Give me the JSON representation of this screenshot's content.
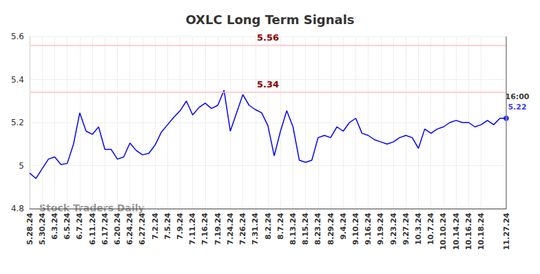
{
  "chart_data": {
    "type": "line",
    "title": "OXLC Long Term Signals",
    "watermark": "Stock Traders Daily",
    "categories": [
      "5.28.24",
      null,
      "5.30.24",
      null,
      "6.3.24",
      null,
      "6.5.24",
      null,
      "6.7.24",
      null,
      "6.11.24",
      null,
      "6.17.24",
      null,
      "6.20.24",
      null,
      "6.24.24",
      null,
      "6.27.24",
      null,
      "7.2.24",
      null,
      "7.5.24",
      null,
      "7.9.24",
      null,
      "7.11.24",
      null,
      "7.16.24",
      null,
      "7.19.24",
      null,
      "7.24.24",
      null,
      "7.26.24",
      null,
      "7.31.24",
      null,
      "8.2.24",
      null,
      "8.7.24",
      null,
      "8.13.24",
      null,
      "8.15.24",
      null,
      "8.23.24",
      null,
      "8.29.24",
      null,
      "9.4.24",
      null,
      "9.10.24",
      null,
      "9.16.24",
      null,
      "9.19.24",
      null,
      "9.23.24",
      null,
      "9.27.24",
      null,
      "10.3.24",
      null,
      "10.7.24",
      null,
      "10.10.24",
      null,
      "10.14.24",
      null,
      "10.16.24",
      null,
      "10.18.24",
      null,
      null,
      null,
      "11.27.24"
    ],
    "series": [
      {
        "name": "OXLC",
        "color": "#0000ff",
        "values": [
          4.965,
          4.94,
          4.985,
          5.03,
          5.04,
          5.005,
          5.01,
          5.1,
          5.245,
          5.16,
          5.145,
          5.18,
          5.075,
          5.075,
          5.03,
          5.04,
          5.105,
          5.07,
          5.05,
          5.057,
          5.095,
          5.155,
          5.19,
          5.225,
          5.255,
          5.3,
          5.235,
          5.27,
          5.29,
          5.265,
          5.28,
          5.35,
          5.16,
          5.245,
          5.33,
          5.28,
          5.26,
          5.245,
          5.185,
          5.045,
          5.16,
          5.255,
          5.18,
          5.025,
          5.015,
          5.025,
          5.13,
          5.14,
          5.13,
          5.18,
          5.16,
          5.2,
          5.22,
          5.15,
          5.14,
          5.12,
          5.11,
          5.1,
          5.11,
          5.13,
          5.14,
          5.13,
          5.08,
          5.17,
          5.15,
          5.17,
          5.18,
          5.2,
          5.21,
          5.2,
          5.2,
          5.18,
          5.19,
          5.21,
          5.19,
          5.22,
          5.22
        ]
      }
    ],
    "annotations": [
      {
        "y": 5.56,
        "text": "5.56",
        "color": "#8b0000"
      },
      {
        "y": 5.34,
        "text": "5.34",
        "color": "#8b0000"
      }
    ],
    "end_label": {
      "time": "16:00",
      "value": 5.22
    },
    "ylim": [
      4.8,
      5.6
    ],
    "yticks": [
      4.8,
      5,
      5.2,
      5.4,
      5.6
    ],
    "grid": true
  }
}
